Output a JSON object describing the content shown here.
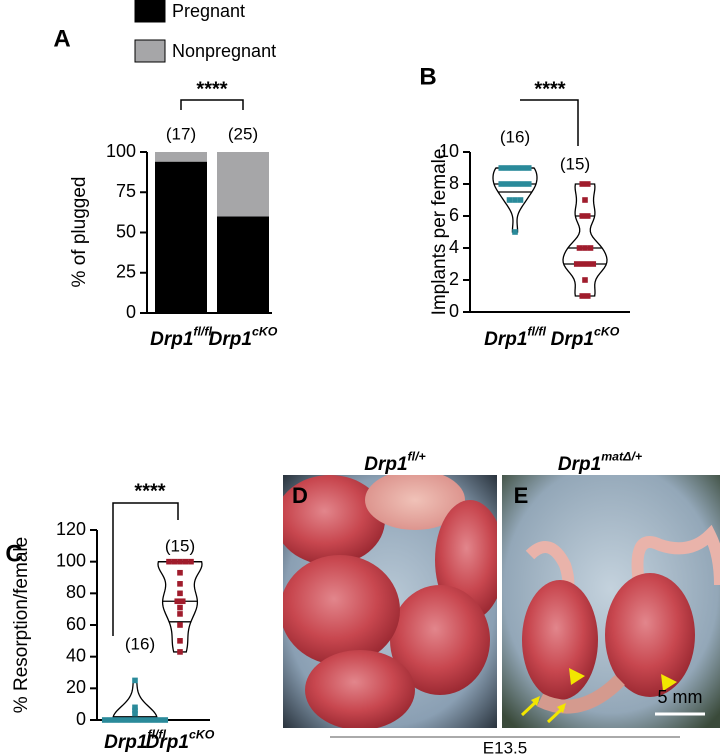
{
  "chart_data": [
    {
      "type": "bar",
      "stacked": true,
      "panel": "A",
      "categories": [
        "Drp1",
        "Drp1"
      ],
      "category_superscripts": [
        "fl/fl",
        "cKO"
      ],
      "series": [
        {
          "name": "Pregnant",
          "color": "#000000",
          "values": [
            94,
            60
          ]
        },
        {
          "name": "Nonpregnant",
          "color": "#a6a6a8",
          "values": [
            6,
            40
          ]
        }
      ],
      "ylabel": "% of plugged",
      "ylim": [
        0,
        100
      ],
      "yticks": [
        0,
        25,
        50,
        75,
        100
      ],
      "group_sizes": [
        "(17)",
        "(25)"
      ],
      "significance": "****"
    },
    {
      "type": "violin",
      "panel": "B",
      "categories": [
        "Drp1",
        "Drp1"
      ],
      "category_superscripts": [
        "fl/fl",
        "cKO"
      ],
      "series": [
        {
          "color": "#2a8a9a",
          "values": [
            9,
            9,
            9,
            9,
            9,
            9,
            8,
            8,
            8,
            8,
            8,
            8,
            7,
            7,
            7,
            5
          ],
          "quartiles": [
            7.5,
            8,
            9
          ]
        },
        {
          "color": "#a01c2c",
          "values": [
            8,
            8,
            7,
            6,
            6,
            4,
            4,
            4,
            3,
            3,
            3,
            3,
            2,
            1,
            1
          ],
          "quartiles": [
            3,
            4,
            6
          ]
        }
      ],
      "ylabel": "Implants per female",
      "ylim": [
        0,
        10
      ],
      "yticks": [
        0,
        2,
        4,
        6,
        8,
        10
      ],
      "group_sizes": [
        "(16)",
        "(15)"
      ],
      "significance": "****"
    },
    {
      "type": "violin",
      "panel": "C",
      "categories": [
        "Drp1",
        "Drp1"
      ],
      "category_superscripts": [
        "fl/fl",
        "cKO"
      ],
      "series": [
        {
          "color": "#2a8a9a",
          "values": [
            0,
            0,
            0,
            0,
            0,
            0,
            0,
            0,
            0,
            0,
            0,
            0,
            4,
            6,
            8,
            25
          ],
          "quartiles": [
            0,
            0,
            2
          ]
        },
        {
          "color": "#a01c2c",
          "values": [
            100,
            100,
            100,
            100,
            100,
            93,
            86,
            80,
            75,
            75,
            71,
            67,
            60,
            50,
            43
          ],
          "quartiles": [
            62,
            75,
            100
          ]
        }
      ],
      "ylabel": "% Resorption/female",
      "ylim": [
        0,
        120
      ],
      "yticks": [
        0,
        20,
        40,
        60,
        80,
        100,
        120
      ],
      "group_sizes": [
        "(16)",
        "(15)"
      ],
      "significance": "****"
    }
  ],
  "photos": {
    "panels": [
      {
        "letter": "D",
        "genotype": "Drp1",
        "genotype_superscript": "fl/+"
      },
      {
        "letter": "E",
        "genotype": "Drp1",
        "genotype_superscript": "matΔ/+"
      }
    ],
    "scale_bar": "5 mm",
    "stage": "E13.5"
  }
}
